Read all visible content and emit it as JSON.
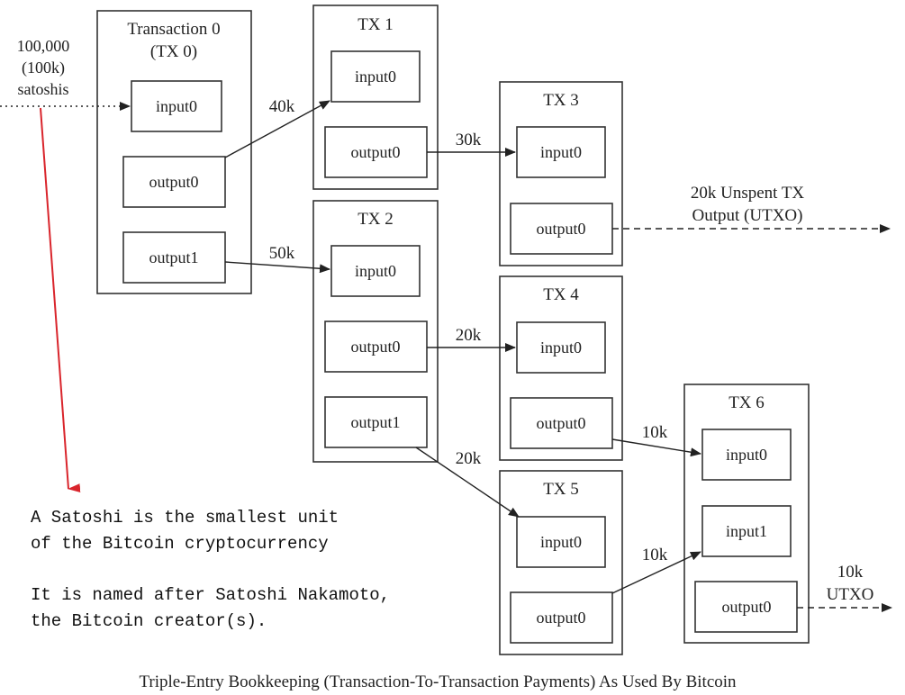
{
  "colors": {
    "line": "#222222",
    "box_stroke": "#333333",
    "annotation_arrow": "#d9252c",
    "text": "#222222"
  },
  "source_input": {
    "line1": "100,000",
    "line2": "(100k)",
    "line3": "satoshis"
  },
  "transactions": {
    "tx0": {
      "title_line1": "Transaction 0",
      "title_line2": "(TX 0)",
      "input0": "input0",
      "output0": "output0",
      "output1": "output1"
    },
    "tx1": {
      "title": "TX 1",
      "input0": "input0",
      "output0": "output0"
    },
    "tx2": {
      "title": "TX 2",
      "input0": "input0",
      "output0": "output0",
      "output1": "output1"
    },
    "tx3": {
      "title": "TX 3",
      "input0": "input0",
      "output0": "output0"
    },
    "tx4": {
      "title": "TX 4",
      "input0": "input0",
      "output0": "output0"
    },
    "tx5": {
      "title": "TX 5",
      "input0": "input0",
      "output0": "output0"
    },
    "tx6": {
      "title": "TX 6",
      "input0": "input0",
      "input1": "input1",
      "output0": "output0"
    }
  },
  "edges": {
    "tx0_out0_to_tx1": "40k",
    "tx0_out1_to_tx2": "50k",
    "tx1_out0_to_tx3": "30k",
    "tx2_out0_to_tx4": "20k",
    "tx2_out1_to_tx5": "20k",
    "tx4_out0_to_tx6": "10k",
    "tx5_out0_to_tx6": "10k"
  },
  "utxo_labels": {
    "tx3_line1": "20k Unspent TX",
    "tx3_line2": "Output (UTXO)",
    "tx6_line1": "10k",
    "tx6_line2": "UTXO"
  },
  "annotation": {
    "line1": "A Satoshi is the smallest unit",
    "line2": "of the Bitcoin cryptocurrency",
    "line3": "It is named after Satoshi Nakamoto,",
    "line4": "the Bitcoin creator(s)."
  },
  "caption": "Triple-Entry Bookkeeping (Transaction-To-Transaction Payments) As Used By Bitcoin"
}
